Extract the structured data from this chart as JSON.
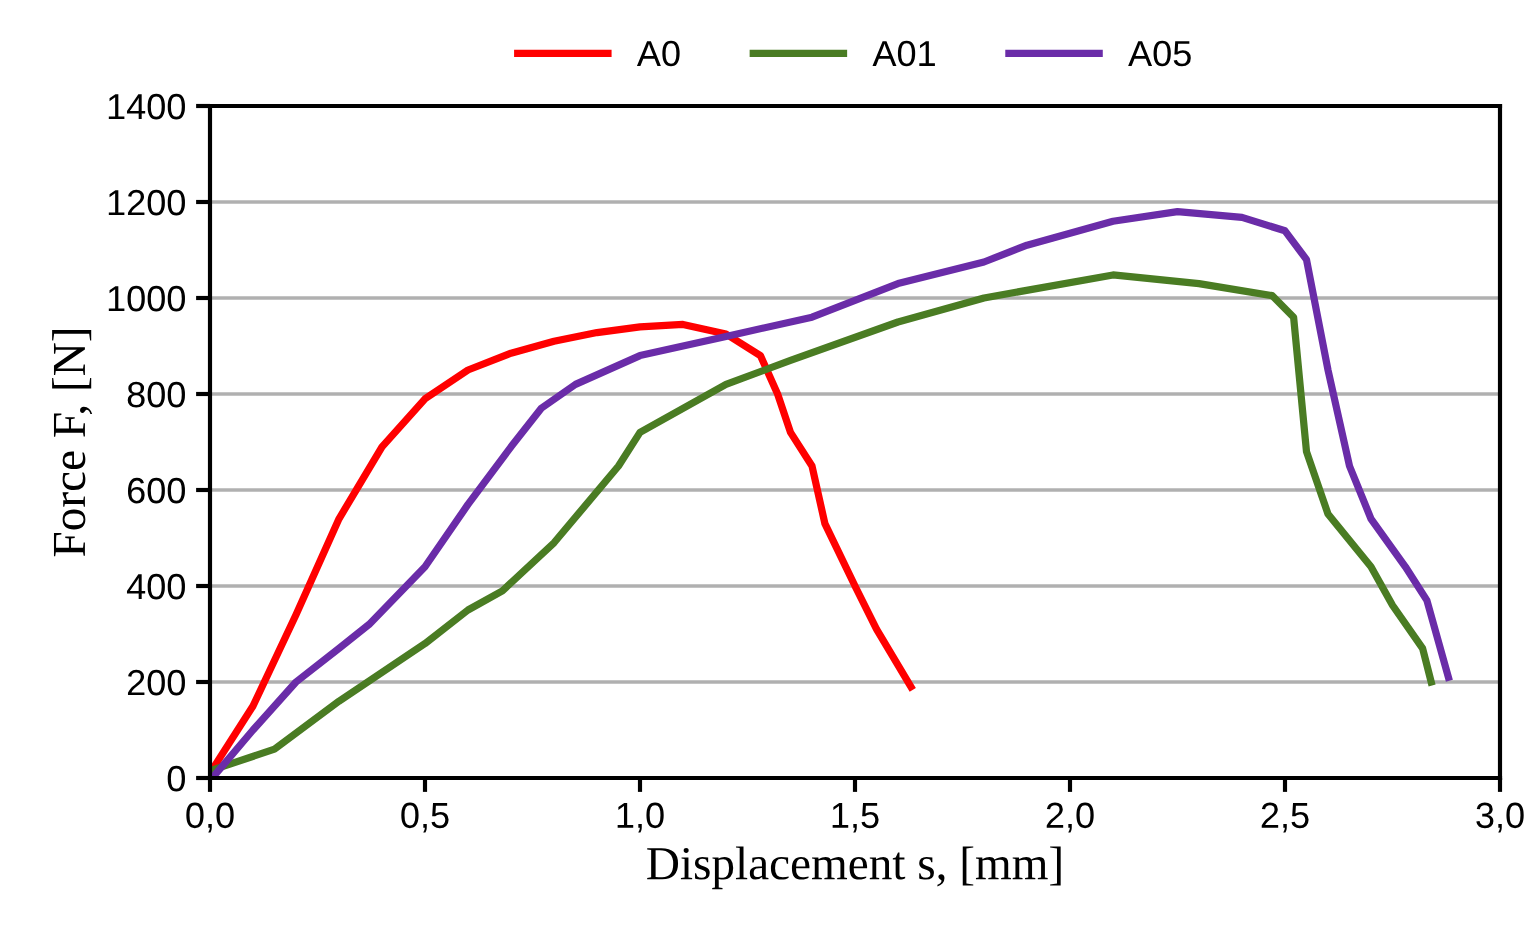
{
  "chart_data": {
    "type": "line",
    "xlabel": "Displacement s, [mm]",
    "ylabel": "Force F, [N]",
    "xlim": [
      0,
      3
    ],
    "xticks": [
      {
        "value": 0,
        "label": "0,0"
      },
      {
        "value": 0.5,
        "label": "0,5"
      },
      {
        "value": 1,
        "label": "1,0"
      },
      {
        "value": 1.5,
        "label": "1,5"
      },
      {
        "value": 2,
        "label": "2,0"
      },
      {
        "value": 2.5,
        "label": "2,5"
      },
      {
        "value": 3,
        "label": "3,0"
      }
    ],
    "ylim": [
      0,
      1400
    ],
    "yticks": [
      0,
      200,
      400,
      600,
      800,
      1000,
      1200,
      1400
    ],
    "grid": "y",
    "legend": "top",
    "marker": "none",
    "line_style": "solid",
    "series": [
      {
        "name": "A0",
        "color": "#ff0000",
        "x": [
          0,
          0.1,
          0.2,
          0.3,
          0.4,
          0.5,
          0.6,
          0.7,
          0.8,
          0.9,
          1.0,
          1.1,
          1.2,
          1.28,
          1.32,
          1.35,
          1.4,
          1.43,
          1.5,
          1.55,
          1.63
        ],
        "values": [
          10,
          150,
          340,
          540,
          690,
          790,
          850,
          885,
          910,
          928,
          940,
          945,
          925,
          880,
          800,
          720,
          650,
          530,
          400,
          310,
          190
        ]
      },
      {
        "name": "A01",
        "color": "#4a7c23",
        "x": [
          0,
          0.15,
          0.3,
          0.5,
          0.6,
          0.68,
          0.8,
          0.95,
          1.0,
          1.2,
          1.35,
          1.6,
          1.8,
          2.1,
          2.3,
          2.47,
          2.52,
          2.55,
          2.6,
          2.7,
          2.75,
          2.82,
          2.84
        ],
        "values": [
          15,
          60,
          160,
          280,
          350,
          390,
          490,
          650,
          720,
          820,
          870,
          950,
          1000,
          1048,
          1030,
          1005,
          960,
          680,
          550,
          440,
          360,
          270,
          200
        ]
      },
      {
        "name": "A05",
        "color": "#6a2ca8",
        "x": [
          0.01,
          0.1,
          0.2,
          0.3,
          0.37,
          0.5,
          0.6,
          0.7,
          0.77,
          0.85,
          1.0,
          1.2,
          1.4,
          1.6,
          1.8,
          1.9,
          2.1,
          2.25,
          2.4,
          2.5,
          2.55,
          2.6,
          2.65,
          2.7,
          2.78,
          2.83,
          2.88
        ],
        "values": [
          5,
          100,
          200,
          270,
          320,
          440,
          570,
          690,
          770,
          820,
          880,
          920,
          960,
          1030,
          1075,
          1110,
          1160,
          1180,
          1168,
          1140,
          1080,
          850,
          650,
          540,
          440,
          370,
          210
        ]
      }
    ]
  }
}
